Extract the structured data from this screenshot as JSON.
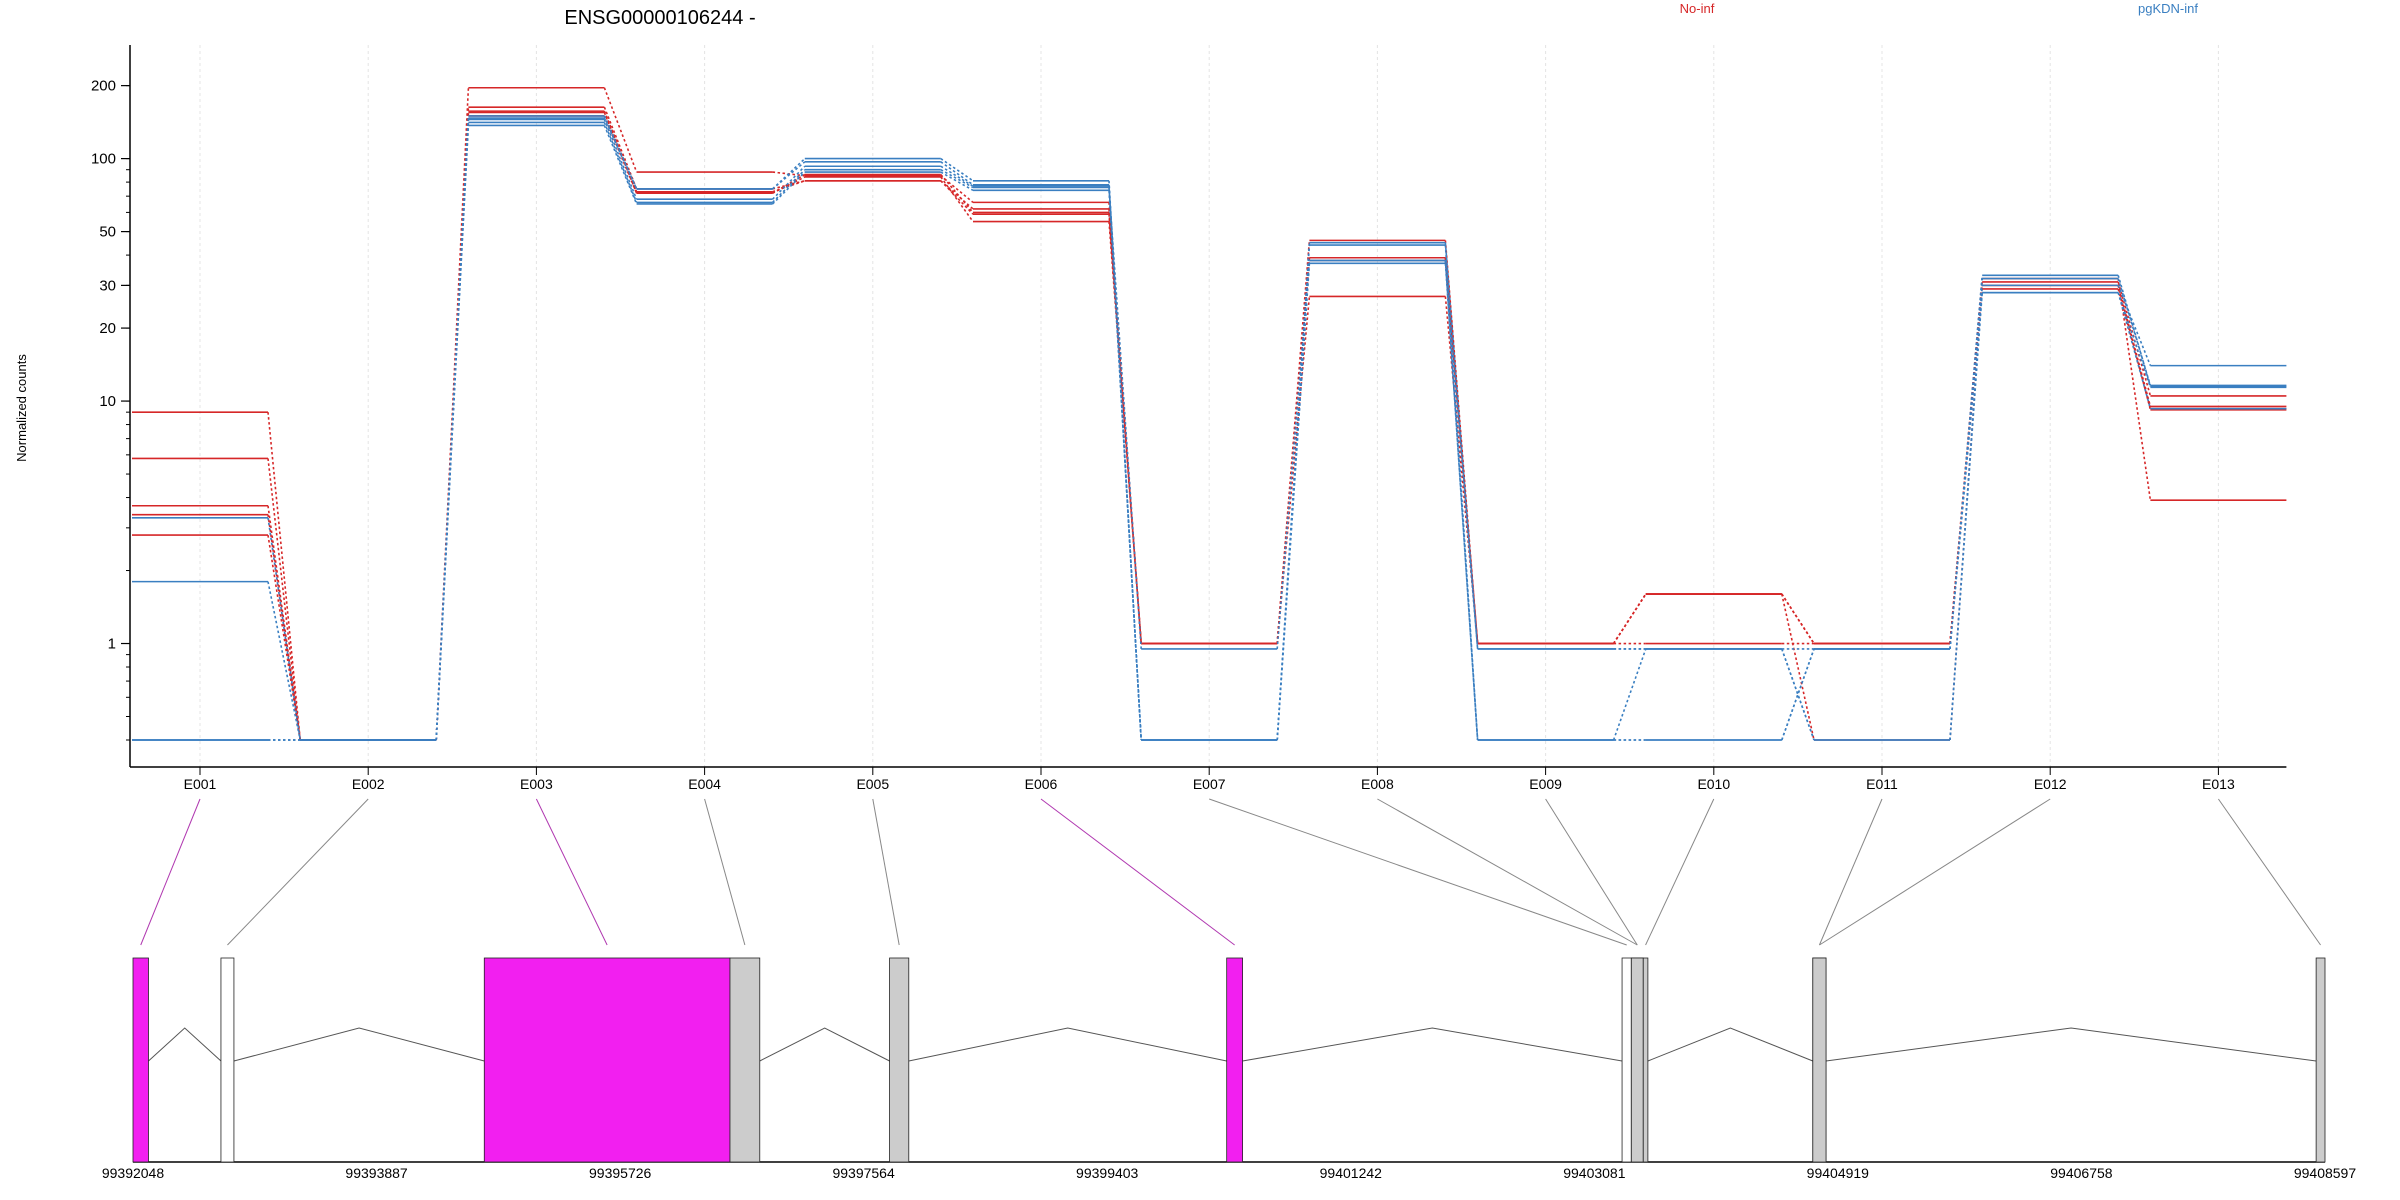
{
  "chart_data": {
    "type": "line",
    "title": "ENSG00000106244 -",
    "ylabel": "Normalized counts",
    "yscale": "log",
    "ylim": [
      0.4,
      260
    ],
    "grid": "vertical",
    "legend_placement": "top-right",
    "yticks": [
      {
        "value": 1,
        "label": "1"
      },
      {
        "value": 10,
        "label": "10"
      },
      {
        "value": 20,
        "label": "20"
      },
      {
        "value": 30,
        "label": "30"
      },
      {
        "value": 50,
        "label": "50"
      },
      {
        "value": 100,
        "label": "100"
      },
      {
        "value": 200,
        "label": "200"
      }
    ],
    "categories": [
      "E001",
      "E002",
      "E003",
      "E004",
      "E005",
      "E006",
      "E007",
      "E008",
      "E009",
      "E010",
      "E011",
      "E012",
      "E013"
    ],
    "groups": [
      {
        "name": "No-inf",
        "color": "#d62728"
      },
      {
        "name": "pgKDN-inf",
        "color": "#3a7fc1"
      }
    ],
    "series": [
      {
        "group": "No-inf",
        "values": [
          9.0,
          0.4,
          196,
          88,
          85,
          66,
          1.0,
          46,
          1.0,
          1.6,
          1.0,
          31,
          10.5
        ]
      },
      {
        "group": "No-inf",
        "values": [
          5.8,
          0.4,
          163,
          75,
          81,
          62,
          1.0,
          39,
          1.0,
          1.6,
          1.0,
          30,
          9.5
        ]
      },
      {
        "group": "No-inf",
        "values": [
          3.7,
          0.4,
          157,
          73,
          81,
          59,
          1.0,
          39,
          1.0,
          1.6,
          0.4,
          30,
          9.2
        ]
      },
      {
        "group": "No-inf",
        "values": [
          3.4,
          0.4,
          155,
          72,
          84,
          55,
          1.0,
          38,
          1.0,
          1.6,
          1.0,
          29,
          9.3
        ]
      },
      {
        "group": "No-inf",
        "values": [
          2.8,
          0.4,
          150,
          72,
          86,
          60,
          1.0,
          27,
          1.0,
          1.0,
          1.0,
          32,
          3.9
        ]
      },
      {
        "group": "pgKDN-inf",
        "values": [
          3.3,
          0.4,
          150,
          75,
          100,
          81,
          0.4,
          45,
          0.95,
          0.95,
          0.95,
          33,
          11.5
        ]
      },
      {
        "group": "pgKDN-inf",
        "values": [
          1.8,
          0.4,
          147,
          75,
          97,
          78,
          0.4,
          44,
          0.4,
          0.4,
          0.95,
          32,
          11.6
        ]
      },
      {
        "group": "pgKDN-inf",
        "values": [
          0.4,
          0.4,
          145,
          68,
          93,
          77,
          0.4,
          38,
          0.95,
          0.95,
          0.4,
          30,
          14.0
        ]
      },
      {
        "group": "pgKDN-inf",
        "values": [
          0.4,
          0.4,
          141,
          66,
          90,
          76,
          0.95,
          38,
          0.4,
          0.4,
          0.95,
          28,
          9.3
        ]
      },
      {
        "group": "pgKDN-inf",
        "values": [
          0.4,
          0.4,
          137,
          65,
          88,
          74,
          0.4,
          37,
          0.4,
          0.95,
          0.4,
          28,
          11.4
        ]
      }
    ],
    "gene_model": {
      "genomic_ticks": [
        "99392048",
        "99393887",
        "99395726",
        "99397564",
        "99399403",
        "99401242",
        "99403081",
        "99404919",
        "99406758",
        "99408597"
      ],
      "genomic_range": [
        99392048,
        99408597
      ],
      "highlight_color": "#f21ff0",
      "exon_color": "#cccccc",
      "exons": [
        {
          "id": "E001",
          "start": 99392048,
          "end": 99392165,
          "fill": "highlight"
        },
        {
          "id": "E002",
          "start": 99392712,
          "end": 99392810,
          "fill": "none"
        },
        {
          "id": "E003",
          "start": 99394700,
          "end": 99396555,
          "fill": "highlight"
        },
        {
          "id": "E004",
          "start": 99396555,
          "end": 99396780,
          "fill": "exon"
        },
        {
          "id": "E005",
          "start": 99397760,
          "end": 99397905,
          "fill": "exon"
        },
        {
          "id": "E006",
          "start": 99400305,
          "end": 99400425,
          "fill": "highlight"
        },
        {
          "id": "E007",
          "start": 99403290,
          "end": 99403360,
          "fill": "none"
        },
        {
          "id": "E008",
          "start": 99403360,
          "end": 99403450,
          "fill": "exon"
        },
        {
          "id": "E009",
          "start": 99403360,
          "end": 99403450,
          "fill": "exon"
        },
        {
          "id": "E010",
          "start": 99403450,
          "end": 99403485,
          "fill": "exon"
        },
        {
          "id": "E011",
          "start": 99404730,
          "end": 99404830,
          "fill": "exon"
        },
        {
          "id": "E012",
          "start": 99404730,
          "end": 99404830,
          "fill": "exon"
        },
        {
          "id": "E013",
          "start": 99408530,
          "end": 99408597,
          "fill": "exon"
        }
      ],
      "introns": [
        [
          99392165,
          99392712
        ],
        [
          99392810,
          99394700
        ],
        [
          99396780,
          99397760
        ],
        [
          99397905,
          99400305
        ],
        [
          99400425,
          99403290
        ],
        [
          99403485,
          99404730
        ],
        [
          99404830,
          99408530
        ]
      ]
    }
  }
}
